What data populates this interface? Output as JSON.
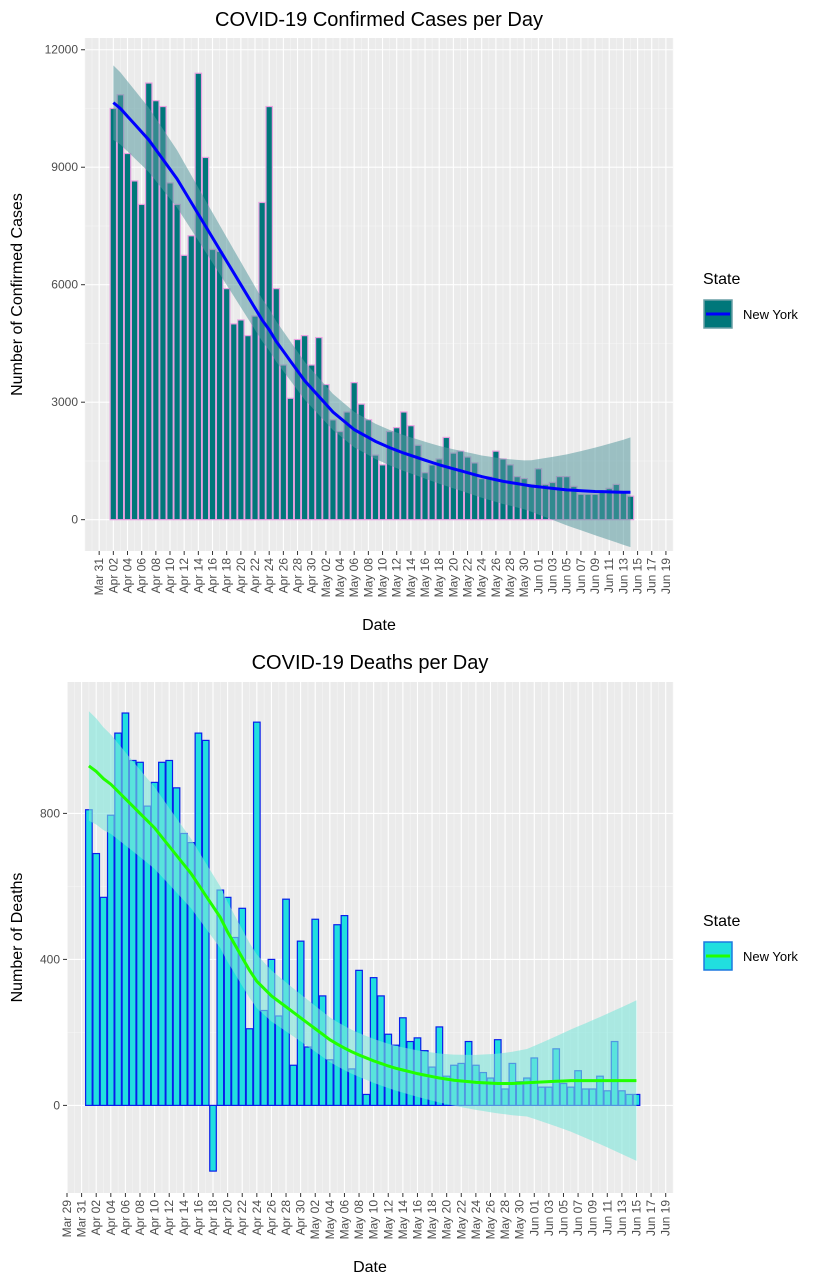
{
  "chart_data": [
    {
      "type": "bar",
      "title": "COVID-19 Confirmed Cases per Day",
      "xlabel": "Date",
      "ylabel": "Number of Confirmed Cases",
      "y_ticks": [
        "0",
        "3000",
        "6000",
        "9000",
        "12000"
      ],
      "ylim": [
        -800,
        12300
      ],
      "xlim": [
        "2020-03-29",
        "2020-06-20"
      ],
      "x_tick_labels": [
        "Mar 31",
        "Apr 02",
        "Apr 04",
        "Apr 06",
        "Apr 08",
        "Apr 10",
        "Apr 12",
        "Apr 14",
        "Apr 16",
        "Apr 18",
        "Apr 20",
        "Apr 22",
        "Apr 24",
        "Apr 26",
        "Apr 28",
        "Apr 30",
        "May 02",
        "May 04",
        "May 06",
        "May 08",
        "May 10",
        "May 12",
        "May 14",
        "May 16",
        "May 18",
        "May 20",
        "May 22",
        "May 24",
        "May 26",
        "May 28",
        "May 30",
        "Jun 01",
        "Jun 03",
        "Jun 05",
        "Jun 07",
        "Jun 09",
        "Jun 11",
        "Jun 13",
        "Jun 15",
        "Jun 17",
        "Jun 19"
      ],
      "x_tick_dates": [
        "2020-03-31",
        "2020-04-02",
        "2020-04-04",
        "2020-04-06",
        "2020-04-08",
        "2020-04-10",
        "2020-04-12",
        "2020-04-14",
        "2020-04-16",
        "2020-04-18",
        "2020-04-20",
        "2020-04-22",
        "2020-04-24",
        "2020-04-26",
        "2020-04-28",
        "2020-04-30",
        "2020-05-02",
        "2020-05-04",
        "2020-05-06",
        "2020-05-08",
        "2020-05-10",
        "2020-05-12",
        "2020-05-14",
        "2020-05-16",
        "2020-05-18",
        "2020-05-20",
        "2020-05-22",
        "2020-05-24",
        "2020-05-26",
        "2020-05-28",
        "2020-05-30",
        "2020-06-01",
        "2020-06-03",
        "2020-06-05",
        "2020-06-07",
        "2020-06-09",
        "2020-06-11",
        "2020-06-13",
        "2020-06-15",
        "2020-06-17",
        "2020-06-19"
      ],
      "x_start": "2020-04-02",
      "values": [
        10500,
        10850,
        9350,
        8650,
        8050,
        11150,
        10700,
        10550,
        8600,
        8050,
        6750,
        7250,
        11400,
        9250,
        6900,
        6850,
        5900,
        5000,
        5100,
        4700,
        5200,
        8100,
        10550,
        5900,
        3950,
        3100,
        4600,
        4700,
        3950,
        4650,
        3450,
        2550,
        2250,
        2750,
        3500,
        2950,
        2550,
        1650,
        1400,
        2250,
        2350,
        2750,
        2400,
        1900,
        1200,
        1400,
        1550,
        2100,
        1700,
        1750,
        1600,
        1450,
        1050,
        1100,
        1750,
        1550,
        1400,
        1100,
        1050,
        900,
        1300,
        900,
        950,
        1100,
        1100,
        850,
        650,
        650,
        650,
        700,
        800,
        900,
        700,
        600
      ],
      "trend": [
        10650,
        10500,
        10300,
        10100,
        9900,
        9700,
        9450,
        9200,
        8950,
        8700,
        8400,
        8100,
        7800,
        7500,
        7200,
        6900,
        6600,
        6300,
        6000,
        5700,
        5400,
        5100,
        4850,
        4550,
        4300,
        4050,
        3800,
        3550,
        3350,
        3150,
        2950,
        2750,
        2600,
        2450,
        2300,
        2200,
        2100,
        2000,
        1920,
        1840,
        1770,
        1700,
        1640,
        1580,
        1520,
        1460,
        1400,
        1350,
        1300,
        1250,
        1200,
        1150,
        1100,
        1060,
        1020,
        980,
        950,
        920,
        890,
        860,
        840,
        820,
        800,
        780,
        760,
        750,
        740,
        730,
        720,
        715,
        710,
        705,
        700,
        700
      ],
      "series": [
        {
          "name": "New York",
          "fill": "#00777A",
          "border": "#E8A0E0",
          "line": "#0000FF"
        }
      ],
      "legend": {
        "title": "State",
        "label": "New York",
        "position": "right"
      },
      "grid": true
    },
    {
      "type": "bar",
      "title": "COVID-19 Deaths per Day",
      "xlabel": "Date",
      "ylabel": "Number of Deaths",
      "y_ticks": [
        "0",
        "400",
        "800"
      ],
      "ylim": [
        -240,
        1160
      ],
      "xlim": [
        "2020-03-29",
        "2020-06-20"
      ],
      "x_tick_labels": [
        "Mar 29",
        "Mar 31",
        "Apr 02",
        "Apr 04",
        "Apr 06",
        "Apr 08",
        "Apr 10",
        "Apr 12",
        "Apr 14",
        "Apr 16",
        "Apr 18",
        "Apr 20",
        "Apr 22",
        "Apr 24",
        "Apr 26",
        "Apr 28",
        "Apr 30",
        "May 02",
        "May 04",
        "May 06",
        "May 08",
        "May 10",
        "May 12",
        "May 14",
        "May 16",
        "May 18",
        "May 20",
        "May 22",
        "May 24",
        "May 26",
        "May 28",
        "May 30",
        "Jun 01",
        "Jun 03",
        "Jun 05",
        "Jun 07",
        "Jun 09",
        "Jun 11",
        "Jun 13",
        "Jun 15",
        "Jun 17",
        "Jun 19"
      ],
      "x_tick_dates": [
        "2020-03-29",
        "2020-03-31",
        "2020-04-02",
        "2020-04-04",
        "2020-04-06",
        "2020-04-08",
        "2020-04-10",
        "2020-04-12",
        "2020-04-14",
        "2020-04-16",
        "2020-04-18",
        "2020-04-20",
        "2020-04-22",
        "2020-04-24",
        "2020-04-26",
        "2020-04-28",
        "2020-04-30",
        "2020-05-02",
        "2020-05-04",
        "2020-05-06",
        "2020-05-08",
        "2020-05-10",
        "2020-05-12",
        "2020-05-14",
        "2020-05-16",
        "2020-05-18",
        "2020-05-20",
        "2020-05-22",
        "2020-05-24",
        "2020-05-26",
        "2020-05-28",
        "2020-05-30",
        "2020-06-01",
        "2020-06-03",
        "2020-06-05",
        "2020-06-07",
        "2020-06-09",
        "2020-06-11",
        "2020-06-13",
        "2020-06-15",
        "2020-06-17",
        "2020-06-19"
      ],
      "x_start": "2020-04-01",
      "values": [
        810,
        690,
        570,
        795,
        1020,
        1075,
        945,
        940,
        820,
        885,
        940,
        945,
        870,
        745,
        720,
        1020,
        1000,
        -180,
        590,
        570,
        460,
        540,
        210,
        1050,
        260,
        400,
        245,
        565,
        110,
        450,
        160,
        510,
        300,
        125,
        495,
        520,
        100,
        370,
        30,
        350,
        300,
        195,
        165,
        240,
        175,
        185,
        150,
        105,
        215,
        80,
        110,
        115,
        175,
        110,
        90,
        75,
        180,
        45,
        115,
        65,
        75,
        130,
        50,
        50,
        155,
        60,
        50,
        95,
        45,
        45,
        80,
        40,
        175,
        40,
        30,
        30
      ],
      "trend": [
        930,
        915,
        895,
        880,
        860,
        840,
        820,
        800,
        780,
        760,
        735,
        710,
        685,
        660,
        635,
        605,
        575,
        545,
        515,
        475,
        440,
        405,
        370,
        340,
        320,
        300,
        285,
        270,
        255,
        240,
        225,
        210,
        195,
        180,
        168,
        157,
        147,
        138,
        130,
        122,
        115,
        108,
        102,
        97,
        92,
        87,
        83,
        79,
        75,
        72,
        69,
        67,
        65,
        63,
        62,
        61,
        60,
        60,
        60,
        61,
        62,
        63,
        64,
        65,
        66,
        67,
        68,
        68,
        68,
        68,
        68,
        68,
        68,
        68,
        68,
        68
      ],
      "series": [
        {
          "name": "New York",
          "fill": "#21DFDF",
          "border": "#0A1EEB",
          "line": "#22FF00"
        }
      ],
      "legend": {
        "title": "State",
        "label": "New York",
        "position": "right"
      },
      "grid": true
    }
  ]
}
